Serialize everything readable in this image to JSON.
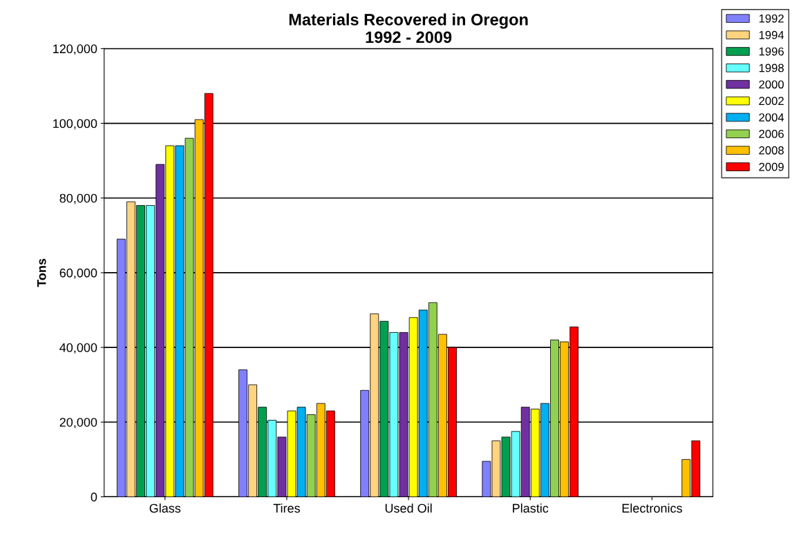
{
  "chart_data": {
    "type": "bar",
    "title": "Materials Recovered in Oregon\n1992 - 2009",
    "ylabel": "Tons",
    "categories": [
      "Glass",
      "Tires",
      "Used Oil",
      "Plastic",
      "Electronics"
    ],
    "series": [
      {
        "name": "1992",
        "color": "#8080ff",
        "values": [
          69000,
          34000,
          28500,
          9500,
          null
        ]
      },
      {
        "name": "1994",
        "color": "#ffd37f",
        "values": [
          79000,
          30000,
          49000,
          15000,
          null
        ]
      },
      {
        "name": "1996",
        "color": "#00a050",
        "values": [
          78000,
          24000,
          47000,
          16000,
          null
        ]
      },
      {
        "name": "1998",
        "color": "#66ffff",
        "values": [
          78000,
          20500,
          44000,
          17500,
          null
        ]
      },
      {
        "name": "2000",
        "color": "#7030a0",
        "values": [
          89000,
          16000,
          44000,
          24000,
          null
        ]
      },
      {
        "name": "2002",
        "color": "#ffff00",
        "values": [
          94000,
          23000,
          48000,
          23500,
          null
        ]
      },
      {
        "name": "2004",
        "color": "#00b0f0",
        "values": [
          94000,
          24000,
          50000,
          25000,
          null
        ]
      },
      {
        "name": "2006",
        "color": "#92d050",
        "values": [
          96000,
          22000,
          52000,
          42000,
          null
        ]
      },
      {
        "name": "2008",
        "color": "#ffc000",
        "values": [
          101000,
          25000,
          43500,
          41500,
          10000
        ]
      },
      {
        "name": "2009",
        "color": "#ff0000",
        "values": [
          108000,
          23000,
          40000,
          45500,
          15000
        ]
      }
    ],
    "ylim": [
      0,
      120000
    ],
    "yticks": [
      {
        "value": 0,
        "label": "0"
      },
      {
        "value": 20000,
        "label": "20,000"
      },
      {
        "value": 40000,
        "label": "40,000"
      },
      {
        "value": 60000,
        "label": "60,000"
      },
      {
        "value": 80000,
        "label": "80,000"
      },
      {
        "value": 100000,
        "label": "100,000"
      },
      {
        "value": 120000,
        "label": "120,000"
      }
    ],
    "grid": "y",
    "legend": "top right"
  }
}
